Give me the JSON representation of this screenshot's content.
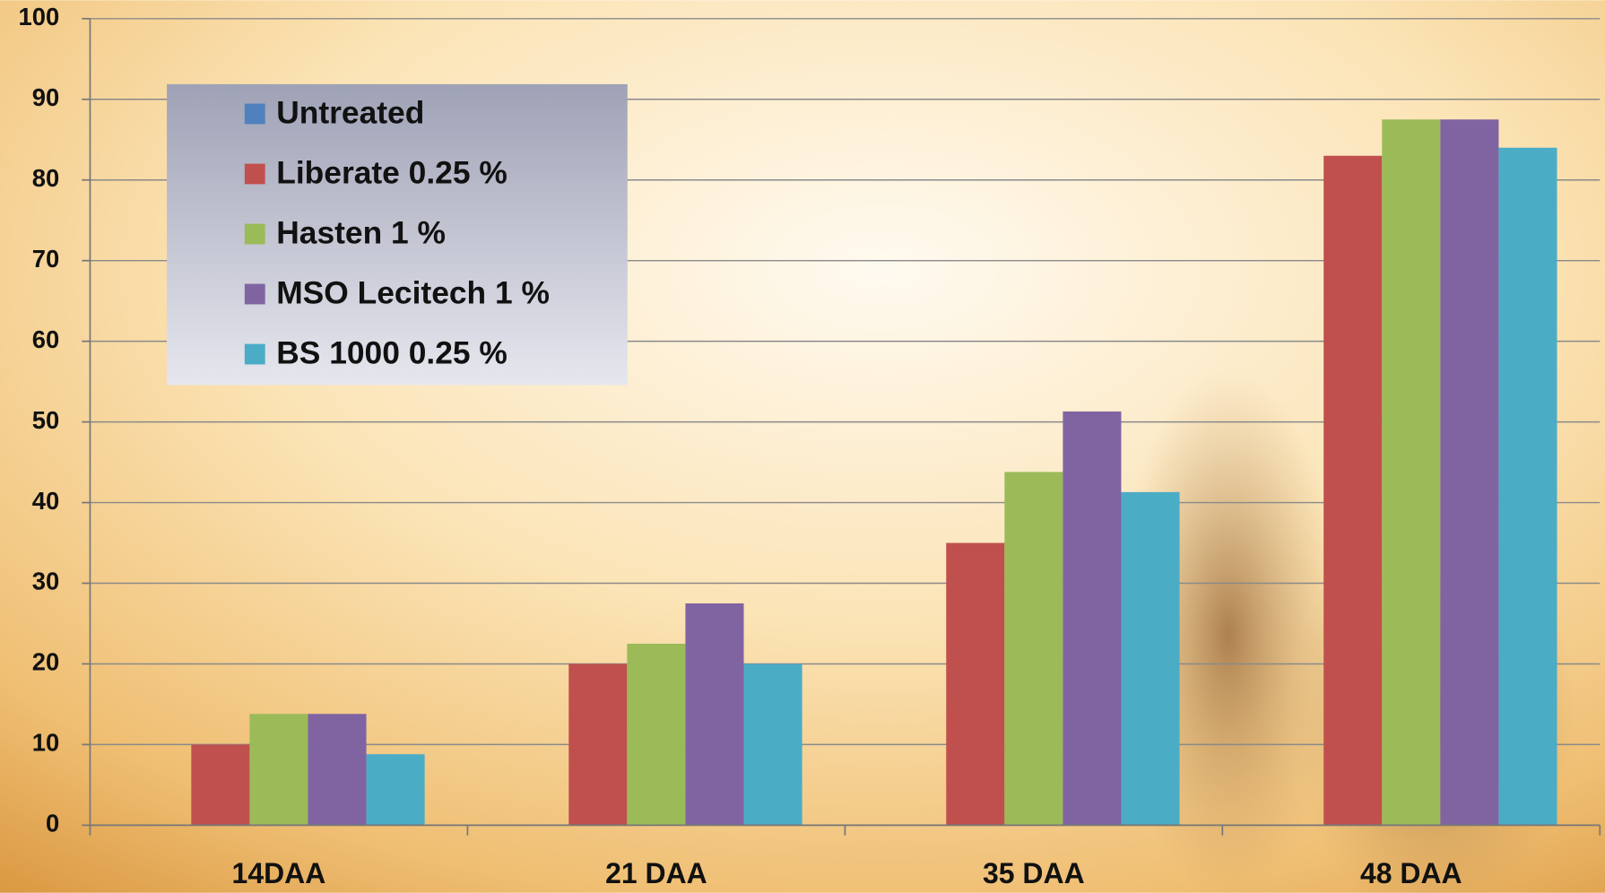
{
  "chart_data": {
    "type": "bar",
    "categories": [
      "14DAA",
      "21 DAA",
      "35 DAA",
      "48 DAA"
    ],
    "series": [
      {
        "name": "Untreated",
        "color": "#4f81bd",
        "values": [
          0,
          0,
          0,
          0
        ]
      },
      {
        "name": "Liberate 0.25 %",
        "color": "#c0504d",
        "values": [
          10,
          20,
          35,
          83
        ]
      },
      {
        "name": "Hasten 1 %",
        "color": "#9bbb59",
        "values": [
          13.8,
          22.5,
          43.8,
          87.5
        ]
      },
      {
        "name": "MSO Lecitech 1 %",
        "color": "#8064a2",
        "values": [
          13.8,
          27.5,
          51.3,
          87.5
        ]
      },
      {
        "name": "BS 1000 0.25 %",
        "color": "#4bacc6",
        "values": [
          8.8,
          20,
          41.3,
          84
        ]
      }
    ],
    "ylim": [
      0,
      100
    ],
    "yticks": [
      0,
      10,
      20,
      30,
      40,
      50,
      60,
      70,
      80,
      90,
      100
    ],
    "grid": true
  }
}
